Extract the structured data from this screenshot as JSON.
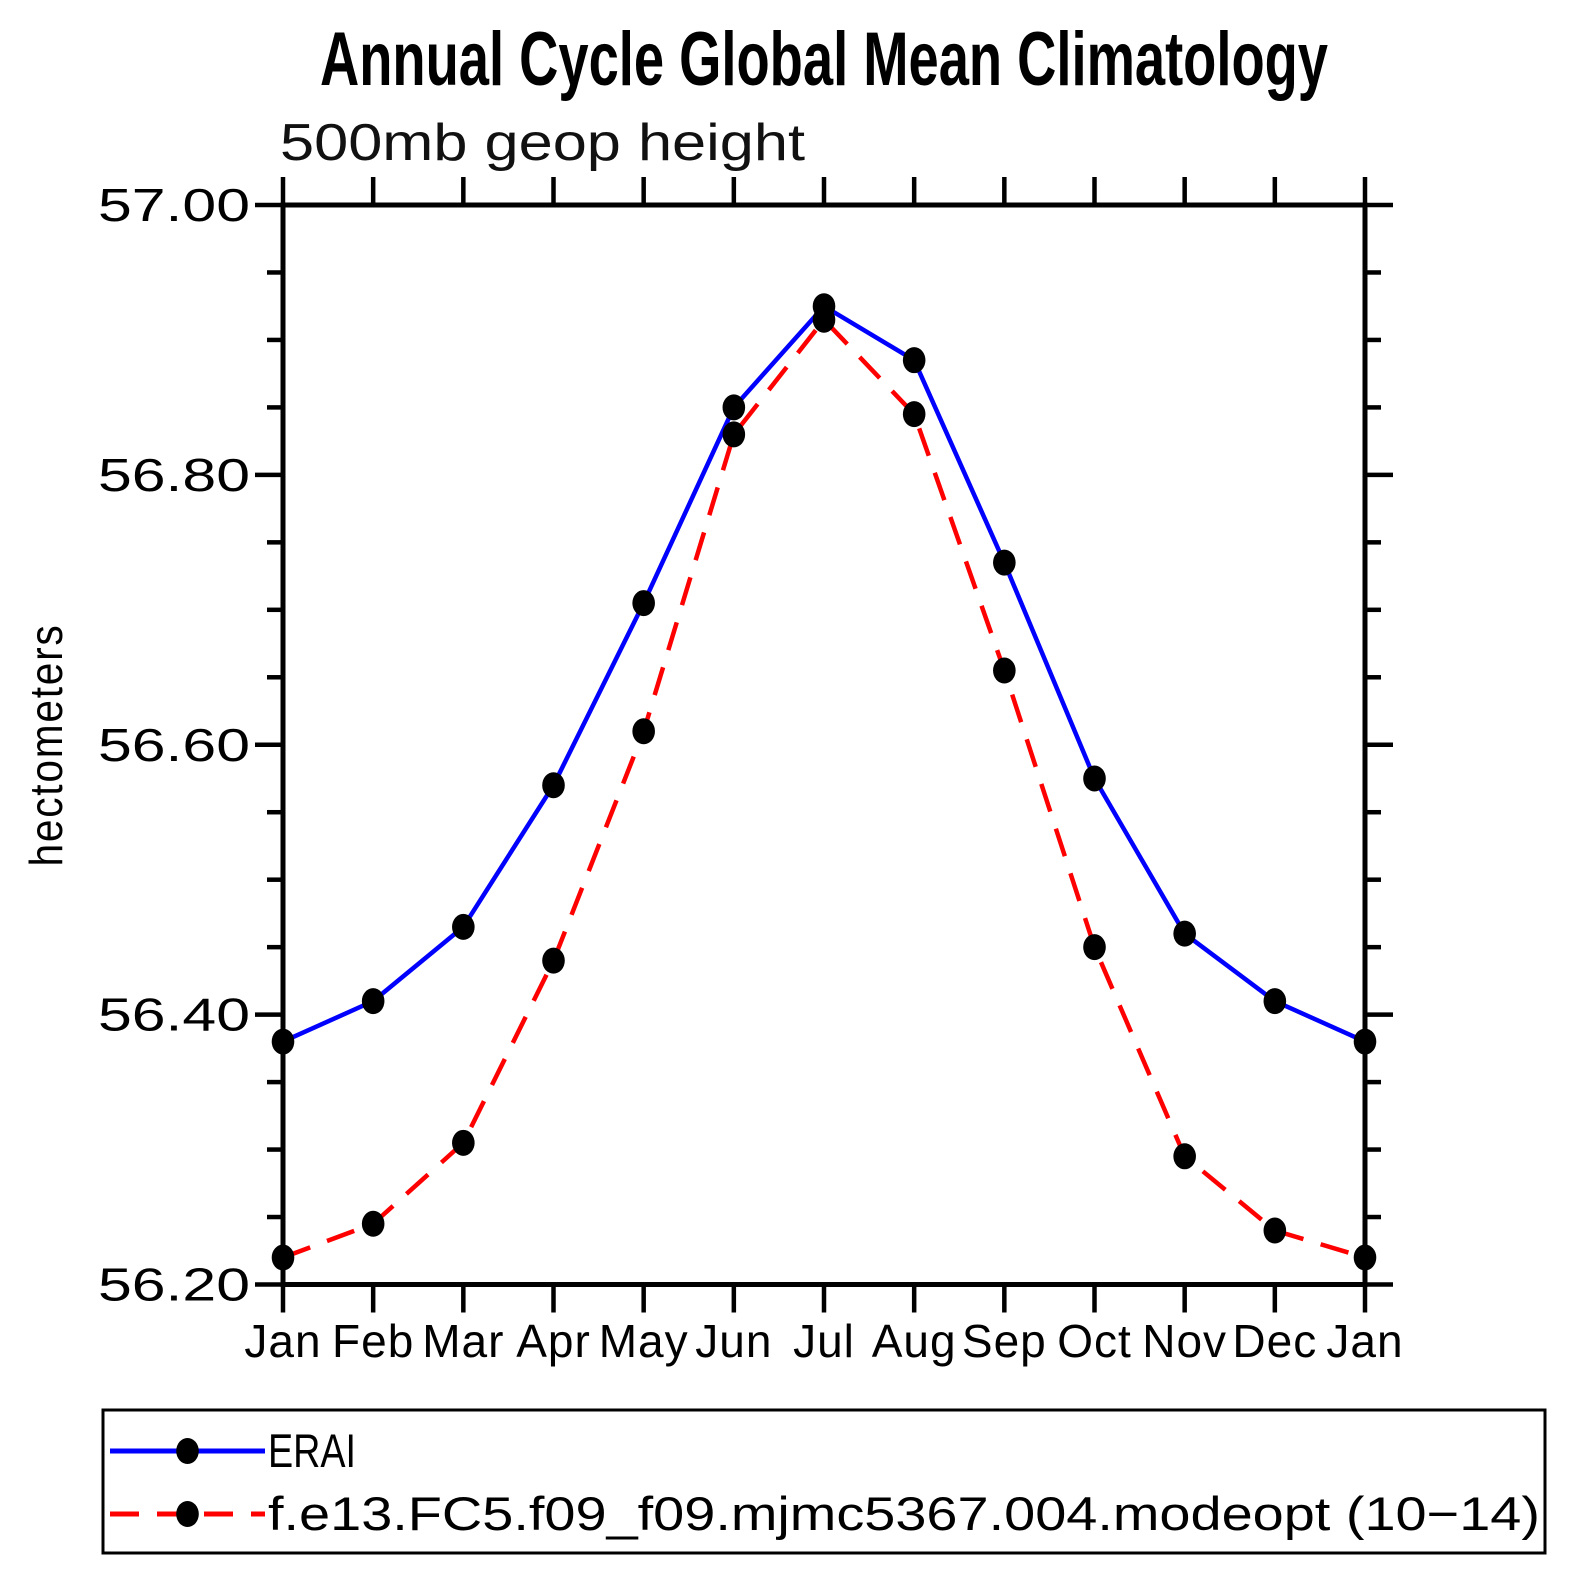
{
  "title": "Annual Cycle Global Mean Climatology",
  "subtitle": "500mb geop height",
  "colors": {
    "axis": "#000000",
    "marker": "#000000",
    "background": "#ffffff",
    "erai_line": "#0000ff",
    "model_line": "#ff0000"
  },
  "chart_data": {
    "type": "line",
    "categories": [
      "Jan",
      "Feb",
      "Mar",
      "Apr",
      "May",
      "Jun",
      "Jul",
      "Aug",
      "Sep",
      "Oct",
      "Nov",
      "Dec",
      "Jan"
    ],
    "xlabel": "",
    "ylabel": "hectometers",
    "ylim": [
      56.2,
      57.0
    ],
    "ytick_major_step": 0.2,
    "ytick_minor_step": 0.05,
    "ytick_labels": [
      "56.20",
      "56.40",
      "56.60",
      "56.80",
      "57.00"
    ],
    "grid": false,
    "legend_position": "bottom-left-box",
    "series": [
      {
        "name": "ERAI",
        "color": "#0000ff",
        "style": "solid",
        "marker": "black-dot",
        "values": [
          56.38,
          56.41,
          56.465,
          56.57,
          56.705,
          56.85,
          56.925,
          56.885,
          56.735,
          56.575,
          56.46,
          56.41,
          56.38
        ]
      },
      {
        "name": "f.e13.FC5.f09_f09.mjmc5367.004.modeopt (10−14)",
        "color": "#ff0000",
        "style": "dashed",
        "marker": "black-dot",
        "values": [
          56.22,
          56.245,
          56.305,
          56.44,
          56.61,
          56.83,
          56.915,
          56.845,
          56.655,
          56.45,
          56.295,
          56.24,
          56.22
        ]
      }
    ]
  }
}
